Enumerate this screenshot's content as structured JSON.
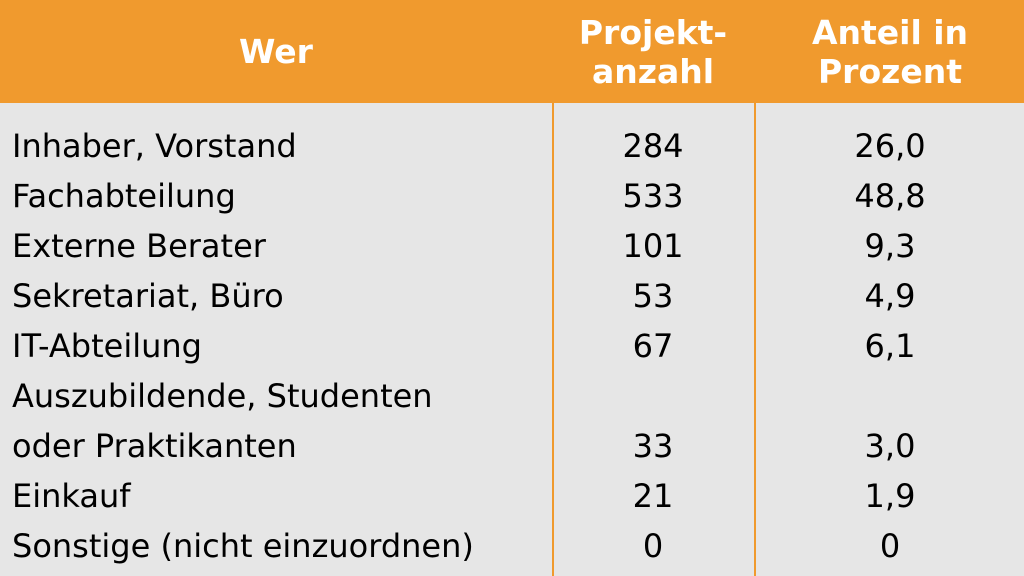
{
  "header": {
    "col1": "Wer",
    "col2_line1": "Projekt-",
    "col2_line2": "anzahl",
    "col3_line1": "Anteil in",
    "col3_line2": "Prozent"
  },
  "rows": [
    {
      "wer": "Inhaber, Vorstand",
      "anzahl": "284",
      "anteil": "26,0"
    },
    {
      "wer": "Fachabteilung",
      "anzahl": "533",
      "anteil": "48,8"
    },
    {
      "wer": "Externe Berater",
      "anzahl": "101",
      "anteil": "9,3"
    },
    {
      "wer": "Sekretariat, Büro",
      "anzahl": "53",
      "anteil": "4,9"
    },
    {
      "wer": "IT-Abteilung",
      "anzahl": "67",
      "anteil": "6,1"
    },
    {
      "wer_line1": "Auszubildende, Studenten",
      "wer_line2": "oder Praktikanten",
      "anzahl": "33",
      "anteil": "3,0"
    },
    {
      "wer": "Einkauf",
      "anzahl": "21",
      "anteil": "1,9"
    },
    {
      "wer": "Sonstige (nicht einzuordnen)",
      "anzahl": "0",
      "anteil": "0"
    }
  ],
  "colors": {
    "header_bg": "#f09a2e",
    "body_bg": "#e6e6e6",
    "header_text": "#ffffff"
  }
}
